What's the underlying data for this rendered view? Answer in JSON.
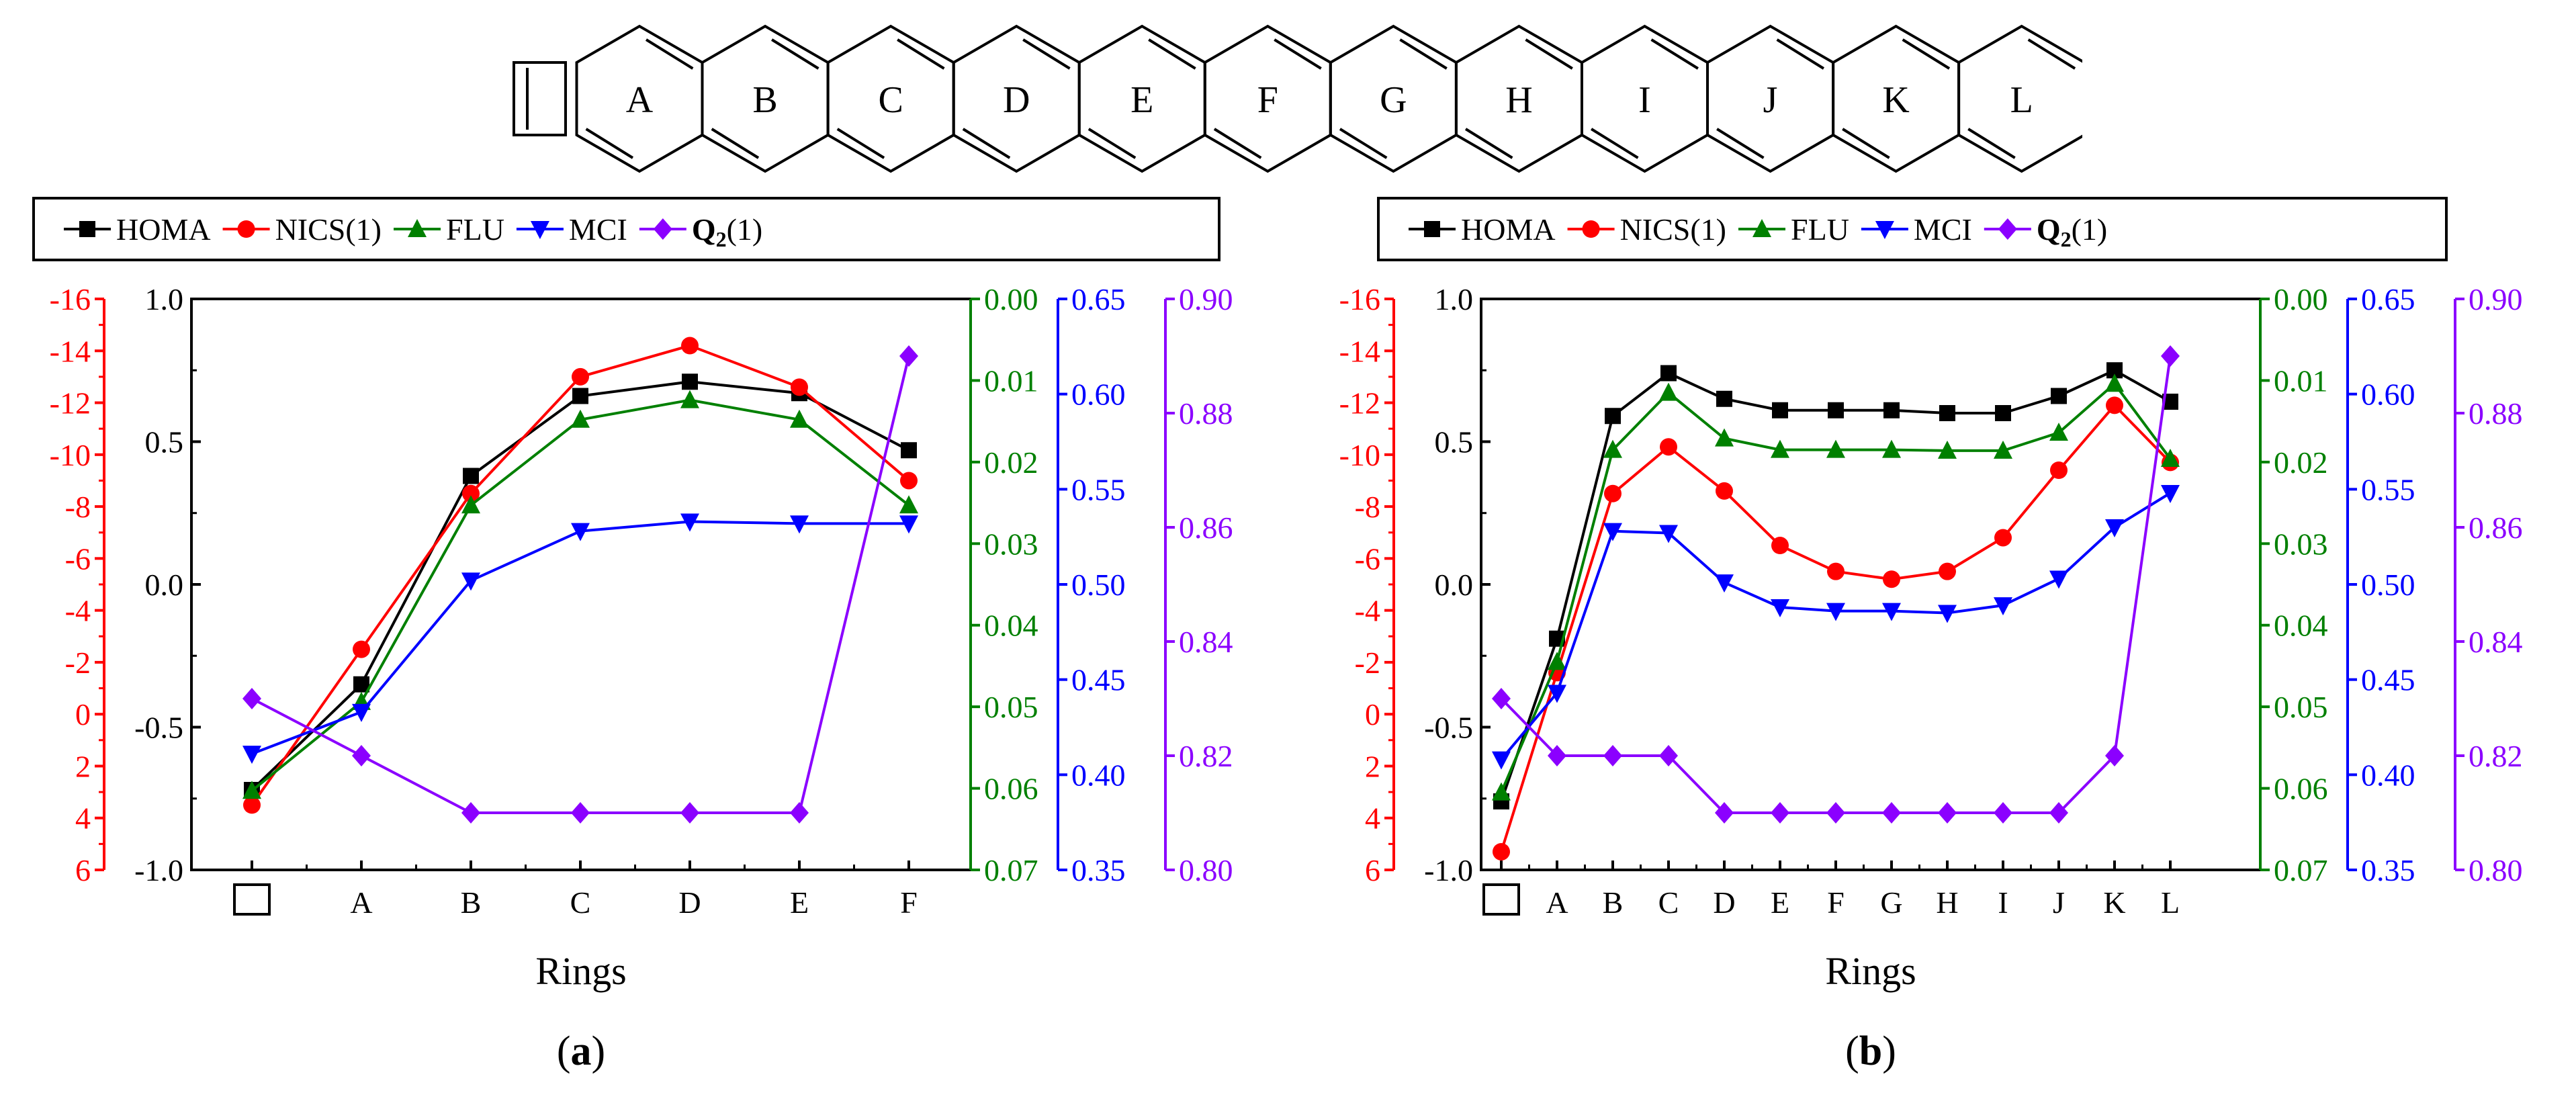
{
  "molecule": {
    "ring_labels": [
      "A",
      "B",
      "C",
      "D",
      "E",
      "F",
      "G",
      "H",
      "I",
      "J",
      "K",
      "L"
    ]
  },
  "colors": {
    "HOMA": "#000000",
    "NICS": "#ff0000",
    "FLU": "#008000",
    "MCI": "#0000ff",
    "Q2": "#8b00ff"
  },
  "legend": {
    "HOMA": "HOMA",
    "NICS": "NICS(1)",
    "FLU": "FLU",
    "MCI": "MCI",
    "Q2_main": "Q",
    "Q2_sub": "2",
    "Q2_tail": "(1)"
  },
  "axes": {
    "homa": {
      "range": [
        -1.0,
        1.0
      ],
      "ticks": [
        "-1.0",
        "-0.5",
        "0.0",
        "0.5",
        "1.0"
      ]
    },
    "nics": {
      "range": [
        6,
        -16
      ],
      "ticks": [
        "6",
        "4",
        "2",
        "0",
        "-2",
        "-4",
        "-6",
        "-8",
        "-10",
        "-12",
        "-14",
        "-16"
      ]
    },
    "flu": {
      "range": [
        0.07,
        0.0
      ],
      "ticks": [
        "0.07",
        "0.06",
        "0.05",
        "0.04",
        "0.03",
        "0.02",
        "0.01",
        "0.00"
      ]
    },
    "mci": {
      "range": [
        0.35,
        0.65
      ],
      "ticks": [
        "0.35",
        "0.40",
        "0.45",
        "0.50",
        "0.55",
        "0.60",
        "0.65"
      ]
    },
    "q2": {
      "range": [
        0.8,
        0.9
      ],
      "ticks": [
        "0.80",
        "0.82",
        "0.84",
        "0.86",
        "0.88",
        "0.90"
      ]
    }
  },
  "chart_data": [
    {
      "type": "line",
      "panel": "(a)",
      "panel_letter": "a",
      "xlabel": "Rings",
      "categories": [
        "□",
        "A",
        "B",
        "C",
        "D",
        "E",
        "F"
      ],
      "series": [
        {
          "name": "HOMA",
          "axis": "homa",
          "values": [
            -0.72,
            -0.35,
            0.38,
            0.66,
            0.71,
            0.67,
            0.47
          ]
        },
        {
          "name": "NICS(1)",
          "axis": "nics",
          "values": [
            3.5,
            -2.5,
            -8.5,
            -13.0,
            -14.2,
            -12.6,
            -9.0
          ]
        },
        {
          "name": "FLU",
          "axis": "flu",
          "values": [
            0.0603,
            0.0494,
            0.0253,
            0.0148,
            0.0124,
            0.0148,
            0.0253
          ]
        },
        {
          "name": "MCI",
          "axis": "mci",
          "values": [
            0.411,
            0.433,
            0.502,
            0.528,
            0.533,
            0.532,
            0.532
          ]
        },
        {
          "name": "Q2(1)",
          "axis": "q2",
          "values": [
            0.83,
            0.82,
            0.81,
            0.81,
            0.81,
            0.81,
            0.89
          ]
        }
      ]
    },
    {
      "type": "line",
      "panel": "(b)",
      "panel_letter": "b",
      "xlabel": "Rings",
      "categories": [
        "□",
        "A",
        "B",
        "C",
        "D",
        "E",
        "F",
        "G",
        "H",
        "I",
        "J",
        "K",
        "L"
      ],
      "series": [
        {
          "name": "HOMA",
          "axis": "homa",
          "values": [
            -0.76,
            -0.19,
            0.59,
            0.74,
            0.65,
            0.61,
            0.61,
            0.61,
            0.6,
            0.6,
            0.66,
            0.75,
            0.64
          ]
        },
        {
          "name": "NICS(1)",
          "axis": "nics",
          "values": [
            5.3,
            -1.6,
            -8.5,
            -10.3,
            -8.6,
            -6.5,
            -5.5,
            -5.2,
            -5.5,
            -6.8,
            -9.4,
            -11.9,
            -9.7
          ]
        },
        {
          "name": "FLU",
          "axis": "flu",
          "values": [
            0.0605,
            0.0445,
            0.0185,
            0.0115,
            0.0171,
            0.0185,
            0.0185,
            0.0185,
            0.0186,
            0.0186,
            0.0164,
            0.0104,
            0.0196
          ]
        },
        {
          "name": "MCI",
          "axis": "mci",
          "values": [
            0.408,
            0.443,
            0.528,
            0.527,
            0.501,
            0.488,
            0.486,
            0.486,
            0.485,
            0.489,
            0.503,
            0.53,
            0.548
          ]
        },
        {
          "name": "Q2(1)",
          "axis": "q2",
          "values": [
            0.83,
            0.82,
            0.82,
            0.82,
            0.81,
            0.81,
            0.81,
            0.81,
            0.81,
            0.81,
            0.81,
            0.82,
            0.89
          ]
        }
      ]
    }
  ]
}
